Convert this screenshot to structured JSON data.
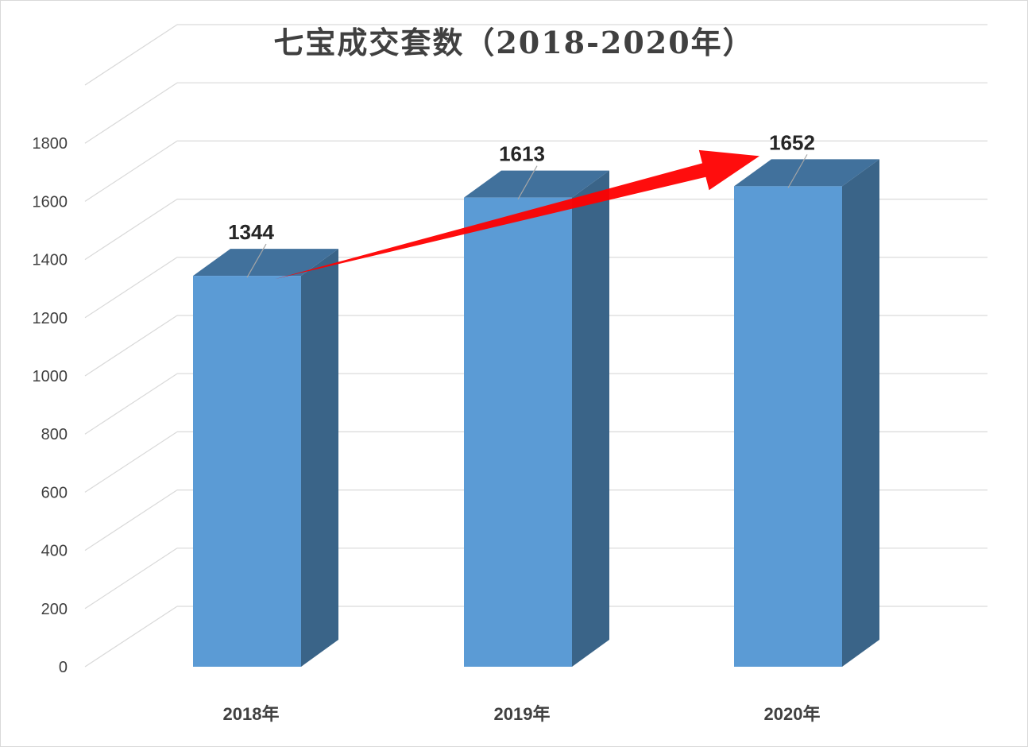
{
  "chart_data": {
    "type": "bar",
    "title": "七宝成交套数（2018-2020年）",
    "categories": [
      "2018年",
      "2019年",
      "2020年"
    ],
    "values": [
      1344,
      1613,
      1652
    ],
    "data_labels": [
      "1344",
      "1613",
      "1652"
    ],
    "ylim": [
      0,
      1800
    ],
    "yticks": [
      "0",
      "200",
      "400",
      "600",
      "800",
      "1000",
      "1200",
      "1400",
      "1600",
      "1800"
    ],
    "xlabel": "",
    "ylabel": "",
    "grid": true,
    "three_d": true,
    "legend": "none",
    "annotation": "red arrow from 2018年 to 2020年 indicating upward trend"
  },
  "colors": {
    "bar_front": "#5b9bd5",
    "bar_side": "#3a6488",
    "bar_top": "#41719c",
    "grid": "#d9d9d9",
    "arrow": "#ff0000"
  }
}
